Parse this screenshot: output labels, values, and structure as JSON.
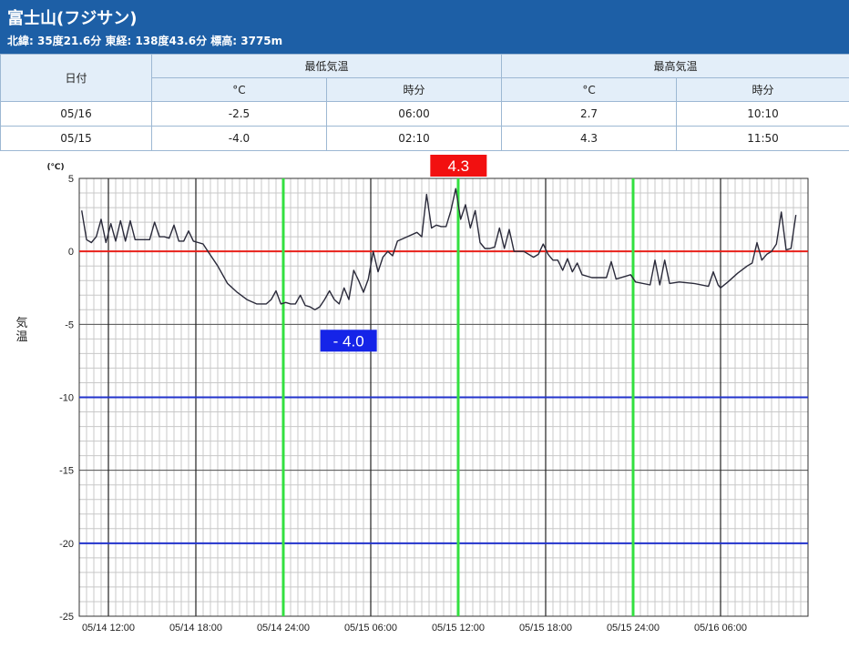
{
  "station": {
    "name": "富士山(フジサン)",
    "info": "北緯: 35度21.6分 東経: 138度43.6分 標高: 3775m"
  },
  "table": {
    "date_header": "日付",
    "min_header": "最低気温",
    "max_header": "最高気温",
    "unit_c": "°C",
    "time_label": "時分",
    "rows": [
      {
        "date": "05/16",
        "min_c": "-2.5",
        "min_time": "06:00",
        "max_c": "2.7",
        "max_time": "10:10"
      },
      {
        "date": "05/15",
        "min_c": "-4.0",
        "min_time": "02:10",
        "max_c": "4.3",
        "max_time": "11:50"
      }
    ]
  },
  "chart_data": {
    "type": "line",
    "ylabel": "気温",
    "yunit": "(℃)",
    "ylim": [
      -25,
      5
    ],
    "yticks": [
      5,
      0,
      -5,
      -10,
      -15,
      -20,
      -25
    ],
    "xlim": [
      "05/14 10:00",
      "05/16 12:00"
    ],
    "xticks": [
      "05/14 12:00",
      "05/14 18:00",
      "05/14 24:00",
      "05/15 06:00",
      "05/15 12:00",
      "05/15 18:00",
      "05/15 24:00",
      "05/16 06:00"
    ],
    "reference_lines": [
      {
        "value": 0,
        "color": "#e8201a"
      },
      {
        "value": -10,
        "color": "#2233cc"
      },
      {
        "value": -20,
        "color": "#2233cc"
      }
    ],
    "marker_lines": [
      {
        "time": "05/15 00:00",
        "color": "#33e040"
      },
      {
        "time": "05/15 12:00",
        "color": "#33e040"
      },
      {
        "time": "05/16 00:00",
        "color": "#33e040"
      }
    ],
    "annotations": [
      {
        "label": "4.3",
        "time": "05/15 11:50",
        "value": 4.3,
        "color": "#f21010"
      },
      {
        "label": "- 4.0",
        "time": "05/15 02:10",
        "value": -4.0,
        "color": "#1524e8"
      }
    ],
    "series": [
      {
        "color": "#2a2a3a",
        "points": [
          [
            "05/14 10:10",
            2.8
          ],
          [
            "05/14 10:30",
            0.8
          ],
          [
            "05/14 10:50",
            0.6
          ],
          [
            "05/14 11:10",
            1.0
          ],
          [
            "05/14 11:30",
            2.2
          ],
          [
            "05/14 11:50",
            0.6
          ],
          [
            "05/14 12:10",
            1.9
          ],
          [
            "05/14 12:30",
            0.7
          ],
          [
            "05/14 12:50",
            2.1
          ],
          [
            "05/14 13:10",
            0.7
          ],
          [
            "05/14 13:30",
            2.1
          ],
          [
            "05/14 13:50",
            0.8
          ],
          [
            "05/14 14:10",
            0.8
          ],
          [
            "05/14 14:30",
            0.8
          ],
          [
            "05/14 14:50",
            0.8
          ],
          [
            "05/14 15:10",
            2.0
          ],
          [
            "05/14 15:30",
            1.0
          ],
          [
            "05/14 15:50",
            1.0
          ],
          [
            "05/14 16:10",
            0.9
          ],
          [
            "05/14 16:30",
            1.8
          ],
          [
            "05/14 16:50",
            0.7
          ],
          [
            "05/14 17:10",
            0.7
          ],
          [
            "05/14 17:30",
            1.4
          ],
          [
            "05/14 17:50",
            0.7
          ],
          [
            "05/14 18:10",
            0.6
          ],
          [
            "05/14 18:30",
            0.5
          ],
          [
            "05/14 18:50",
            0.0
          ],
          [
            "05/14 19:30",
            -1.0
          ],
          [
            "05/14 20:10",
            -2.2
          ],
          [
            "05/14 20:50",
            -2.8
          ],
          [
            "05/14 21:30",
            -3.3
          ],
          [
            "05/14 22:10",
            -3.6
          ],
          [
            "05/14 22:50",
            -3.6
          ],
          [
            "05/14 23:10",
            -3.3
          ],
          [
            "05/14 23:30",
            -2.7
          ],
          [
            "05/14 23:50",
            -3.6
          ],
          [
            "05/15 00:10",
            -3.5
          ],
          [
            "05/15 00:30",
            -3.6
          ],
          [
            "05/15 00:50",
            -3.6
          ],
          [
            "05/15 01:10",
            -3.0
          ],
          [
            "05/15 01:30",
            -3.7
          ],
          [
            "05/15 01:50",
            -3.8
          ],
          [
            "05/15 02:10",
            -4.0
          ],
          [
            "05/15 02:30",
            -3.8
          ],
          [
            "05/15 02:50",
            -3.3
          ],
          [
            "05/15 03:10",
            -2.7
          ],
          [
            "05/15 03:30",
            -3.3
          ],
          [
            "05/15 03:50",
            -3.6
          ],
          [
            "05/15 04:10",
            -2.5
          ],
          [
            "05/15 04:30",
            -3.3
          ],
          [
            "05/15 04:50",
            -1.3
          ],
          [
            "05/15 05:10",
            -2.0
          ],
          [
            "05/15 05:30",
            -2.8
          ],
          [
            "05/15 05:50",
            -1.9
          ],
          [
            "05/15 06:10",
            0.0
          ],
          [
            "05/15 06:30",
            -1.4
          ],
          [
            "05/15 06:50",
            -0.4
          ],
          [
            "05/15 07:10",
            0.0
          ],
          [
            "05/15 07:30",
            -0.3
          ],
          [
            "05/15 07:50",
            0.7
          ],
          [
            "05/15 08:30",
            1.0
          ],
          [
            "05/15 09:10",
            1.3
          ],
          [
            "05/15 09:30",
            1.0
          ],
          [
            "05/15 09:50",
            3.9
          ],
          [
            "05/15 10:10",
            1.6
          ],
          [
            "05/15 10:30",
            1.8
          ],
          [
            "05/15 10:50",
            1.7
          ],
          [
            "05/15 11:10",
            1.7
          ],
          [
            "05/15 11:30",
            2.8
          ],
          [
            "05/15 11:50",
            4.3
          ],
          [
            "05/15 12:10",
            2.2
          ],
          [
            "05/15 12:30",
            3.2
          ],
          [
            "05/15 12:50",
            1.6
          ],
          [
            "05/15 13:10",
            2.8
          ],
          [
            "05/15 13:30",
            0.6
          ],
          [
            "05/15 13:50",
            0.2
          ],
          [
            "05/15 14:10",
            0.2
          ],
          [
            "05/15 14:30",
            0.3
          ],
          [
            "05/15 14:50",
            1.6
          ],
          [
            "05/15 15:10",
            0.2
          ],
          [
            "05/15 15:30",
            1.5
          ],
          [
            "05/15 15:50",
            0.0
          ],
          [
            "05/15 16:30",
            0.0
          ],
          [
            "05/15 17:10",
            -0.4
          ],
          [
            "05/15 17:30",
            -0.2
          ],
          [
            "05/15 17:50",
            0.5
          ],
          [
            "05/15 18:10",
            -0.2
          ],
          [
            "05/15 18:30",
            -0.6
          ],
          [
            "05/15 18:50",
            -0.6
          ],
          [
            "05/15 19:10",
            -1.3
          ],
          [
            "05/15 19:30",
            -0.5
          ],
          [
            "05/15 19:50",
            -1.4
          ],
          [
            "05/15 20:10",
            -0.8
          ],
          [
            "05/15 20:30",
            -1.6
          ],
          [
            "05/15 21:10",
            -1.8
          ],
          [
            "05/15 22:10",
            -1.8
          ],
          [
            "05/15 22:30",
            -0.7
          ],
          [
            "05/15 22:50",
            -1.9
          ],
          [
            "05/15 23:30",
            -1.7
          ],
          [
            "05/15 23:50",
            -1.6
          ],
          [
            "05/16 00:10",
            -2.1
          ],
          [
            "05/16 01:10",
            -2.3
          ],
          [
            "05/16 01:30",
            -0.6
          ],
          [
            "05/16 01:50",
            -2.3
          ],
          [
            "05/16 02:10",
            -0.6
          ],
          [
            "05/16 02:30",
            -2.2
          ],
          [
            "05/16 03:10",
            -2.1
          ],
          [
            "05/16 04:10",
            -2.2
          ],
          [
            "05/16 05:10",
            -2.4
          ],
          [
            "05/16 05:30",
            -1.4
          ],
          [
            "05/16 05:50",
            -2.3
          ],
          [
            "05/16 06:00",
            -2.5
          ],
          [
            "05/16 06:30",
            -2.1
          ],
          [
            "05/16 07:10",
            -1.5
          ],
          [
            "05/16 07:50",
            -1.0
          ],
          [
            "05/16 08:10",
            -0.8
          ],
          [
            "05/16 08:30",
            0.6
          ],
          [
            "05/16 08:50",
            -0.6
          ],
          [
            "05/16 09:10",
            -0.2
          ],
          [
            "05/16 09:30",
            0.0
          ],
          [
            "05/16 09:50",
            0.5
          ],
          [
            "05/16 10:10",
            2.7
          ],
          [
            "05/16 10:30",
            0.1
          ],
          [
            "05/16 10:50",
            0.2
          ],
          [
            "05/16 11:10",
            2.5
          ]
        ]
      }
    ]
  }
}
